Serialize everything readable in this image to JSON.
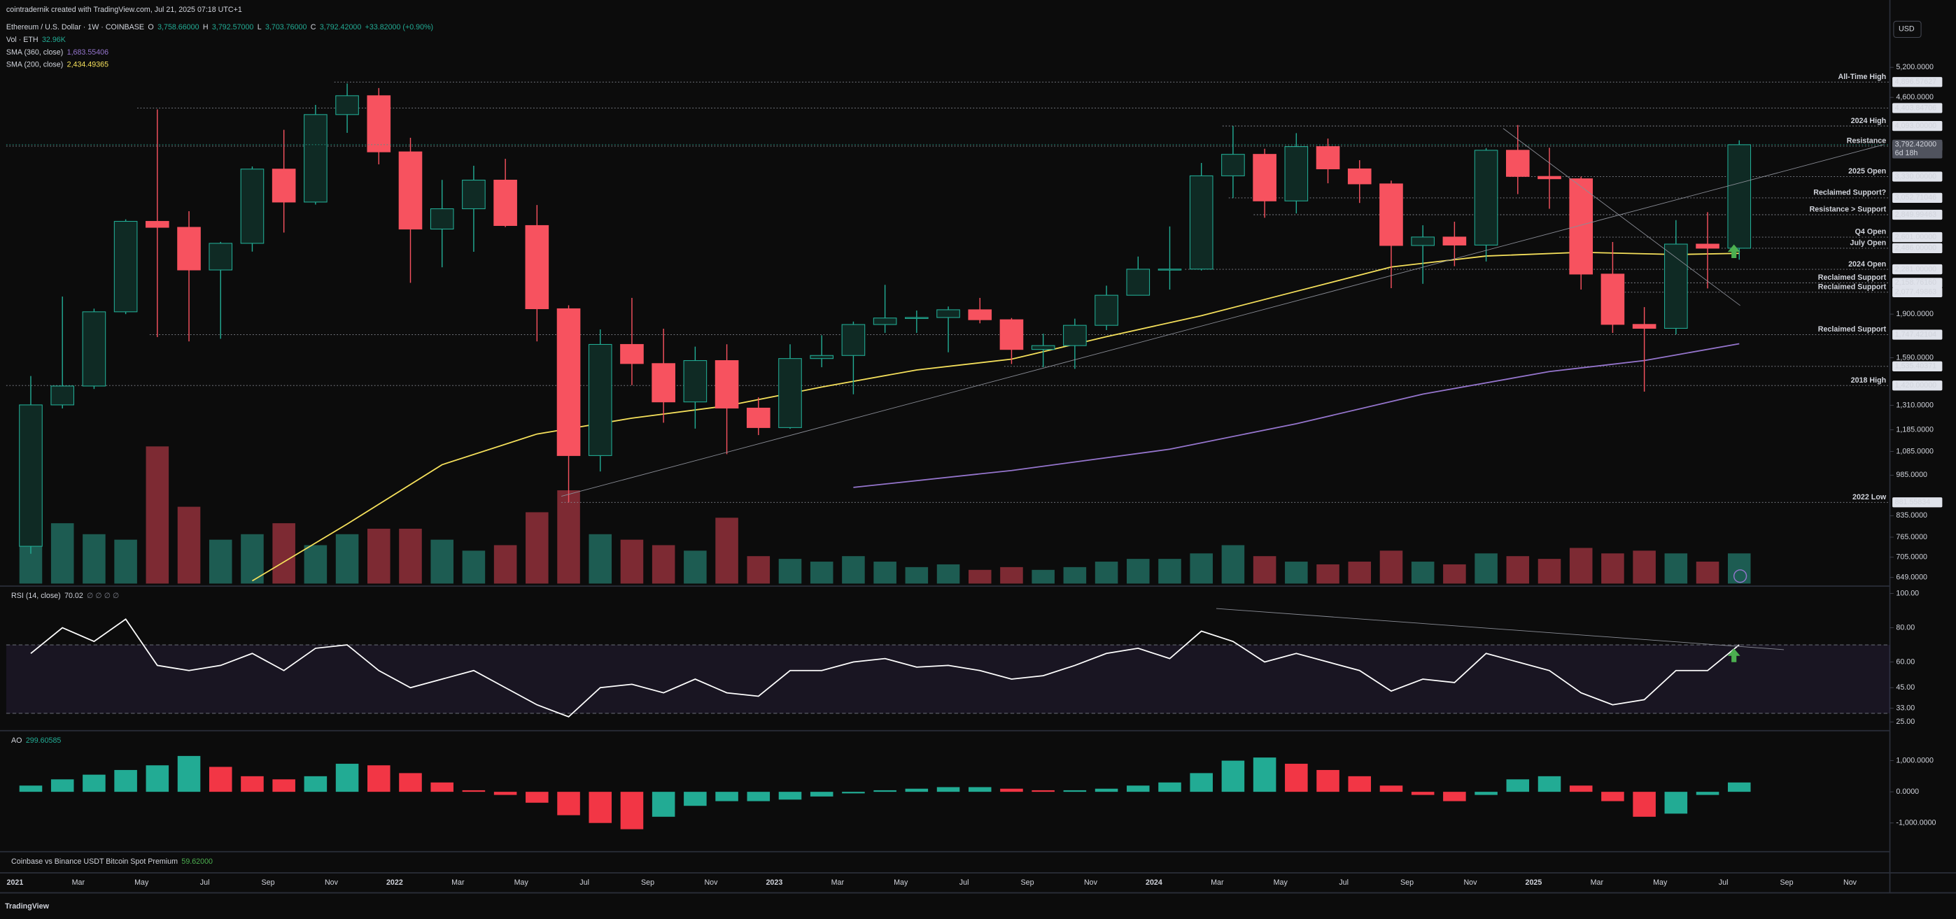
{
  "header": {
    "text": "cointradernik created with TradingView.com, Jul 21, 2025 07:18 UTC+1"
  },
  "footer": {
    "logo_text": "TradingView"
  },
  "currency": "USD",
  "premium_indicator": {
    "title": "Coinbase vs Binance USDT Bitcoin Spot Premium",
    "value": 59.62,
    "value_label": "59.62000"
  },
  "chart_data": [
    {
      "type": "candlestick",
      "title": "Ethereum / U.S. Dollar · 1W · COINBASE",
      "quote": [
        {
          "key": "O",
          "value": 3758.66,
          "label": "3,758.66000"
        },
        {
          "key": "H",
          "value": 3792.57,
          "label": "3,792.57000"
        },
        {
          "key": "L",
          "value": 3703.76,
          "label": "3,703.76000"
        },
        {
          "key": "C",
          "value": 3792.42,
          "label": "3,792.42000"
        }
      ],
      "change": "+33.82000 (+0.90%)",
      "log_scale": true,
      "up_color": "#22ab94",
      "down_color": "#f7525f",
      "ylim": [
        633,
        6340
      ],
      "yticks": [
        {
          "value": 5200,
          "label": "5,200.0000"
        },
        {
          "value": 4600,
          "label": "4,600.0000"
        },
        {
          "value": 1900,
          "label": "1,900.0000"
        },
        {
          "value": 1590,
          "label": "1,590.0000"
        },
        {
          "value": 1310,
          "label": "1,310.0000"
        },
        {
          "value": 1185,
          "label": "1,185.0000"
        },
        {
          "value": 1085,
          "label": "1,085.0000"
        },
        {
          "value": 985,
          "label": "985.0000"
        },
        {
          "value": 835,
          "label": "835.0000"
        },
        {
          "value": 765,
          "label": "765.0000"
        },
        {
          "value": 705,
          "label": "705.0000"
        },
        {
          "value": 649,
          "label": "649.0000"
        }
      ],
      "xticks": [
        {
          "value": "2021-01",
          "label": "2021"
        },
        {
          "value": "2021-03",
          "label": "Mar"
        },
        {
          "value": "2021-05",
          "label": "May"
        },
        {
          "value": "2021-07",
          "label": "Jul"
        },
        {
          "value": "2021-09",
          "label": "Sep"
        },
        {
          "value": "2021-11",
          "label": "Nov"
        },
        {
          "value": "2022-01",
          "label": "2022"
        },
        {
          "value": "2022-03",
          "label": "Mar"
        },
        {
          "value": "2022-05",
          "label": "May"
        },
        {
          "value": "2022-07",
          "label": "Jul"
        },
        {
          "value": "2022-09",
          "label": "Sep"
        },
        {
          "value": "2022-11",
          "label": "Nov"
        },
        {
          "value": "2023-01",
          "label": "2023"
        },
        {
          "value": "2023-03",
          "label": "Mar"
        },
        {
          "value": "2023-05",
          "label": "May"
        },
        {
          "value": "2023-07",
          "label": "Jul"
        },
        {
          "value": "2023-09",
          "label": "Sep"
        },
        {
          "value": "2023-11",
          "label": "Nov"
        },
        {
          "value": "2024-01",
          "label": "2024"
        },
        {
          "value": "2024-03",
          "label": "Mar"
        },
        {
          "value": "2024-05",
          "label": "May"
        },
        {
          "value": "2024-07",
          "label": "Jul"
        },
        {
          "value": "2024-09",
          "label": "Sep"
        },
        {
          "value": "2024-11",
          "label": "Nov"
        },
        {
          "value": "2025-01",
          "label": "2025"
        },
        {
          "value": "2025-03",
          "label": "Mar"
        },
        {
          "value": "2025-05",
          "label": "May"
        },
        {
          "value": "2025-07",
          "label": "Jul"
        },
        {
          "value": "2025-09",
          "label": "Sep"
        },
        {
          "value": "2025-11",
          "label": "Nov"
        }
      ],
      "candles": {
        "x": [
          "2021-01",
          "2021-02",
          "2021-03",
          "2021-04",
          "2021-05",
          "2021-06",
          "2021-07",
          "2021-08",
          "2021-09",
          "2021-10",
          "2021-11",
          "2021-12",
          "2022-01",
          "2022-02",
          "2022-03",
          "2022-04",
          "2022-05",
          "2022-06",
          "2022-07",
          "2022-08",
          "2022-09",
          "2022-10",
          "2022-11",
          "2022-12",
          "2023-01",
          "2023-02",
          "2023-03",
          "2023-04",
          "2023-05",
          "2023-06",
          "2023-07",
          "2023-08",
          "2023-09",
          "2023-10",
          "2023-11",
          "2023-12",
          "2024-01",
          "2024-02",
          "2024-03",
          "2024-04",
          "2024-05",
          "2024-06",
          "2024-07",
          "2024-08",
          "2024-09",
          "2024-10",
          "2024-11",
          "2024-12",
          "2025-01",
          "2025-02",
          "2025-03",
          "2025-04",
          "2025-05",
          "2025-06",
          "2025-07"
        ],
        "open": [
          737,
          1312,
          1417,
          1918,
          2774,
          2707,
          2275,
          2536,
          3433,
          3001,
          4288,
          4631,
          3683,
          2688,
          2920,
          3282,
          2727,
          1942,
          1067,
          1679,
          1553,
          1328,
          1572,
          1295,
          1196,
          1585,
          1605,
          1821,
          1870,
          1874,
          1934,
          1857,
          1645,
          1671,
          1815,
          2052,
          2282,
          2283,
          3340,
          3646,
          3015,
          3763,
          3436,
          3232,
          2514,
          2602,
          2518,
          3707,
          3332,
          3300,
          2237,
          1822,
          1793,
          2528,
          2486
        ],
        "high": [
          1476,
          2041,
          1943,
          2797,
          4380,
          2891,
          2551,
          3470,
          4030,
          4460,
          4868,
          4778,
          3900,
          3285,
          3480,
          3580,
          2965,
          1970,
          1785,
          2030,
          1790,
          1664,
          1680,
          1353,
          1680,
          1743,
          1843,
          2141,
          1928,
          1960,
          2030,
          1870,
          1754,
          1865,
          2134,
          2403,
          2717,
          3520,
          4093,
          3730,
          3975,
          3888,
          3560,
          3275,
          2730,
          2770,
          3740,
          4109,
          3745,
          3330,
          2550,
          1955,
          2788,
          2880,
          3860
        ],
        "low": [
          715,
          1293,
          1400,
          1900,
          1730,
          1700,
          1718,
          2452,
          2650,
          2970,
          3980,
          3500,
          2159,
          2300,
          2450,
          2710,
          1700,
          881.55834,
          1000,
          1422,
          1220,
          1191,
          1073,
          1160,
          1190,
          1530,
          1370,
          1760,
          1760,
          1626,
          1830,
          1550,
          1530,
          1520,
          1780,
          2050,
          2100,
          2270,
          3050,
          2815,
          2865,
          3240,
          2990,
          2112,
          2150,
          2310,
          2355,
          3100,
          2920,
          2100,
          1760,
          1385,
          1750,
          2110,
          2373
        ],
        "close": [
          1312,
          1417,
          1918,
          2774,
          2707,
          2275,
          2536,
          3433,
          3001,
          4288,
          4631,
          3683,
          2688,
          2920,
          3282,
          2727,
          1942,
          1067,
          1679,
          1553,
          1328,
          1572,
          1295,
          1196,
          1585,
          1605,
          1821,
          1870,
          1874,
          1934,
          1857,
          1645,
          1671,
          1815,
          2052,
          2282,
          2283,
          3340,
          3646,
          3015,
          3763,
          3436,
          3232,
          2514,
          2602,
          2518,
          3707,
          3332,
          3300,
          2237,
          1822,
          1793,
          2528,
          2486,
          3792.42
        ]
      },
      "volume": {
        "name": "Vol · ETH",
        "legend_value": "32.96K",
        "up_color": "#1d5c52",
        "down_color": "#7d2a33",
        "values": [
          150,
          110,
          90,
          80,
          250,
          140,
          80,
          90,
          110,
          70,
          90,
          100,
          100,
          80,
          60,
          70,
          130,
          170,
          90,
          80,
          70,
          60,
          120,
          50,
          45,
          40,
          50,
          40,
          30,
          35,
          25,
          30,
          25,
          30,
          40,
          45,
          45,
          55,
          70,
          50,
          40,
          35,
          40,
          60,
          40,
          35,
          55,
          50,
          45,
          65,
          55,
          60,
          55,
          40,
          55
        ]
      },
      "series": [
        {
          "name": "SMA (360, close)",
          "legend_value": "1,683.55406",
          "color": "#9575cd",
          "x": [
            "2023-03",
            "2023-08",
            "2024-01",
            "2024-05",
            "2024-09",
            "2025-01",
            "2025-04",
            "2025-07"
          ],
          "values": [
            937,
            1004,
            1095,
            1215,
            1371,
            1503,
            1572,
            1683.55406
          ]
        },
        {
          "name": "SMA (200, close)",
          "legend_value": "2,434.49365",
          "color": "#f5e05b",
          "x": [
            "2021-08",
            "2021-11",
            "2022-02",
            "2022-05",
            "2022-08",
            "2022-11",
            "2023-02",
            "2023-05",
            "2023-08",
            "2023-11",
            "2024-02",
            "2024-05",
            "2024-08",
            "2024-11",
            "2025-02",
            "2025-05",
            "2025-07"
          ],
          "values": [
            640,
            807,
            1028,
            1165,
            1243,
            1307,
            1411,
            1513,
            1581,
            1733,
            1888,
            2085,
            2303,
            2408,
            2445,
            2423,
            2434.49365
          ]
        }
      ],
      "last_price": {
        "value": 3792.42,
        "label": "3,792.42000",
        "countdown": "6d 18h"
      },
      "levels": [
        {
          "name": "All-Time High",
          "value": 4896.57627,
          "label": "4,896.57627"
        },
        {
          "value": 4403.84706,
          "label": "4,403.84706"
        },
        {
          "name": "2024 High",
          "value": 4093,
          "label": "4,093.00000"
        },
        {
          "name": "Resistance",
          "value": 3770.39598,
          "label": "3,770.39598"
        },
        {
          "name": "2025 Open",
          "value": 3330,
          "label": "3,330.00000"
        },
        {
          "name": "Reclaimed Support?",
          "value": 3052.71046,
          "label": "3,052.71046"
        },
        {
          "name": "Resistance > Support",
          "value": 2849.99463,
          "label": "2,849.99463"
        },
        {
          "name": "Q4 Open",
          "value": 2601,
          "label": "2,601.00000"
        },
        {
          "name": "July Open",
          "value": 2486,
          "label": "2,486.00000"
        },
        {
          "name": "2024 Open",
          "value": 2281,
          "label": "2,281.00000"
        },
        {
          "name": "Reclaimed Support",
          "value": 2158.7616,
          "label": "2,158.76160"
        },
        {
          "name": "Reclaimed Support",
          "value": 2077.49863,
          "label": "2,077.49863"
        },
        {
          "name": "Reclaimed Support",
          "value": 1747.42104,
          "label": "1,747.42104"
        },
        {
          "value": 1535.40371,
          "label": "1,535.40371"
        },
        {
          "name": "2018 High",
          "value": 1420,
          "label": "1,420.00000"
        },
        {
          "name": "2022 Low",
          "value": 881.55834,
          "label": "881.55834"
        }
      ]
    },
    {
      "type": "line",
      "title": "RSI (14, close)",
      "legend_value": "70.02",
      "legend_extra": "∅ ∅ ∅ ∅",
      "color": "#ffffff",
      "ylim": [
        20.6,
        103.6
      ],
      "yticks": [
        {
          "value": 100,
          "label": "100.00"
        },
        {
          "value": 80,
          "label": "80.00"
        },
        {
          "value": 60,
          "label": "60.00"
        },
        {
          "value": 45,
          "label": "45.00"
        },
        {
          "value": 33,
          "label": "33.00"
        },
        {
          "value": 25,
          "label": "25.00"
        }
      ],
      "bands": [
        30,
        70
      ],
      "x": [
        "2021-01",
        "2021-02",
        "2021-03",
        "2021-04",
        "2021-05",
        "2021-06",
        "2021-07",
        "2021-08",
        "2021-09",
        "2021-10",
        "2021-11",
        "2021-12",
        "2022-01",
        "2022-02",
        "2022-03",
        "2022-04",
        "2022-05",
        "2022-06",
        "2022-07",
        "2022-08",
        "2022-09",
        "2022-10",
        "2022-11",
        "2022-12",
        "2023-01",
        "2023-02",
        "2023-03",
        "2023-04",
        "2023-05",
        "2023-06",
        "2023-07",
        "2023-08",
        "2023-09",
        "2023-10",
        "2023-11",
        "2023-12",
        "2024-01",
        "2024-02",
        "2024-03",
        "2024-04",
        "2024-05",
        "2024-06",
        "2024-07",
        "2024-08",
        "2024-09",
        "2024-10",
        "2024-11",
        "2024-12",
        "2025-01",
        "2025-02",
        "2025-03",
        "2025-04",
        "2025-05",
        "2025-06",
        "2025-07"
      ],
      "values": [
        65,
        80,
        72,
        85,
        58,
        55,
        58,
        65,
        55,
        68,
        70,
        55,
        45,
        50,
        55,
        45,
        35,
        28,
        45,
        47,
        42,
        50,
        42,
        40,
        55,
        55,
        60,
        62,
        57,
        58,
        55,
        50,
        52,
        58,
        65,
        68,
        62,
        78,
        72,
        60,
        65,
        60,
        55,
        43,
        50,
        48,
        65,
        60,
        55,
        42,
        35,
        38,
        55,
        55,
        70.02
      ]
    },
    {
      "type": "bar",
      "title": "AO",
      "legend_value": "299.60585",
      "up_color": "#22ab94",
      "down_color": "#f23645",
      "ylim": [
        -1880,
        1880
      ],
      "yticks": [
        {
          "value": 1000,
          "label": "1,000.0000"
        },
        {
          "value": 0,
          "label": "0.0000"
        },
        {
          "value": -1000,
          "label": "-1,000.0000"
        }
      ],
      "x": [
        "2021-01",
        "2021-02",
        "2021-03",
        "2021-04",
        "2021-05",
        "2021-06",
        "2021-07",
        "2021-08",
        "2021-09",
        "2021-10",
        "2021-11",
        "2021-12",
        "2022-01",
        "2022-02",
        "2022-03",
        "2022-04",
        "2022-05",
        "2022-06",
        "2022-07",
        "2022-08",
        "2022-09",
        "2022-10",
        "2022-11",
        "2022-12",
        "2023-01",
        "2023-02",
        "2023-03",
        "2023-04",
        "2023-05",
        "2023-06",
        "2023-07",
        "2023-08",
        "2023-09",
        "2023-10",
        "2023-11",
        "2023-12",
        "2024-01",
        "2024-02",
        "2024-03",
        "2024-04",
        "2024-05",
        "2024-06",
        "2024-07",
        "2024-08",
        "2024-09",
        "2024-10",
        "2024-11",
        "2024-12",
        "2025-01",
        "2025-02",
        "2025-03",
        "2025-04",
        "2025-05",
        "2025-06",
        "2025-07"
      ],
      "values": [
        200,
        400,
        550,
        700,
        850,
        1150,
        800,
        500,
        400,
        500,
        900,
        850,
        600,
        300,
        50,
        -100,
        -350,
        -750,
        -1000,
        -1200,
        -800,
        -450,
        -300,
        -300,
        -250,
        -150,
        -50,
        50,
        100,
        150,
        150,
        100,
        50,
        50,
        100,
        200,
        300,
        600,
        1000,
        1100,
        900,
        700,
        500,
        200,
        -100,
        -300,
        -100,
        400,
        500,
        200,
        -300,
        -800,
        -700,
        -100,
        299.60585
      ]
    }
  ]
}
